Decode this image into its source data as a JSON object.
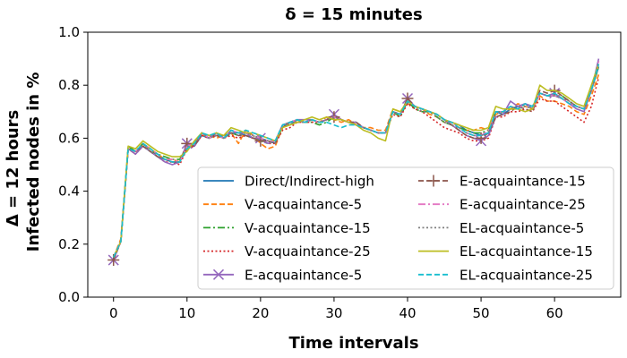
{
  "chart_data": {
    "type": "line",
    "title": "δ = 15 minutes",
    "xlabel": "Time intervals",
    "ylabel_lines": [
      "Δ = 12 hours",
      "Infected nodes in %"
    ],
    "xlim": [
      -3.5,
      69
    ],
    "ylim": [
      0.0,
      1.0
    ],
    "xticks": [
      0,
      10,
      20,
      30,
      40,
      50,
      60
    ],
    "yticks": [
      0.0,
      0.2,
      0.4,
      0.6,
      0.8,
      1.0
    ],
    "grid": false,
    "legend_position": "lower-right",
    "legend_columns": 2,
    "x": [
      0,
      1,
      2,
      3,
      4,
      5,
      6,
      7,
      8,
      9,
      10,
      11,
      12,
      13,
      14,
      15,
      16,
      17,
      18,
      19,
      20,
      21,
      22,
      23,
      24,
      25,
      26,
      27,
      28,
      29,
      30,
      31,
      32,
      33,
      34,
      35,
      36,
      37,
      38,
      39,
      40,
      41,
      42,
      43,
      44,
      45,
      46,
      47,
      48,
      49,
      50,
      51,
      52,
      53,
      54,
      55,
      56,
      57,
      58,
      59,
      60,
      61,
      62,
      63,
      64,
      65,
      66
    ],
    "series": [
      {
        "name": "Direct/Indirect-high",
        "color": "#1f77b4",
        "dash": "solid",
        "marker": "none",
        "values": [
          0.15,
          0.21,
          0.56,
          0.55,
          0.57,
          0.55,
          0.53,
          0.52,
          0.51,
          0.51,
          0.57,
          0.57,
          0.61,
          0.6,
          0.62,
          0.6,
          0.62,
          0.62,
          0.61,
          0.6,
          0.6,
          0.59,
          0.58,
          0.65,
          0.65,
          0.67,
          0.66,
          0.67,
          0.66,
          0.67,
          0.68,
          0.67,
          0.66,
          0.65,
          0.64,
          0.63,
          0.62,
          0.62,
          0.7,
          0.69,
          0.74,
          0.72,
          0.71,
          0.7,
          0.69,
          0.67,
          0.66,
          0.65,
          0.63,
          0.62,
          0.61,
          0.62,
          0.7,
          0.69,
          0.71,
          0.72,
          0.73,
          0.71,
          0.77,
          0.76,
          0.76,
          0.75,
          0.73,
          0.72,
          0.71,
          0.78,
          0.87
        ]
      },
      {
        "name": "V-acquaintance-5",
        "color": "#ff7f0e",
        "dash": "dashed",
        "marker": "none",
        "values": [
          0.15,
          0.22,
          0.56,
          0.54,
          0.58,
          0.56,
          0.54,
          0.52,
          0.52,
          0.51,
          0.56,
          0.58,
          0.61,
          0.61,
          0.6,
          0.61,
          0.62,
          0.58,
          0.63,
          0.61,
          0.58,
          0.56,
          0.57,
          0.64,
          0.66,
          0.66,
          0.66,
          0.67,
          0.66,
          0.68,
          0.67,
          0.66,
          0.67,
          0.65,
          0.64,
          0.64,
          0.63,
          0.63,
          0.71,
          0.7,
          0.73,
          0.72,
          0.71,
          0.69,
          0.68,
          0.66,
          0.65,
          0.64,
          0.63,
          0.63,
          0.64,
          0.63,
          0.69,
          0.7,
          0.71,
          0.73,
          0.72,
          0.71,
          0.76,
          0.74,
          0.74,
          0.73,
          0.72,
          0.7,
          0.69,
          0.76,
          0.84
        ]
      },
      {
        "name": "V-acquaintance-15",
        "color": "#2ca02c",
        "dash": "dashdot",
        "marker": "none",
        "values": [
          0.15,
          0.21,
          0.57,
          0.55,
          0.58,
          0.55,
          0.54,
          0.53,
          0.52,
          0.52,
          0.57,
          0.58,
          0.62,
          0.6,
          0.61,
          0.6,
          0.62,
          0.61,
          0.62,
          0.61,
          0.59,
          0.58,
          0.59,
          0.65,
          0.66,
          0.67,
          0.66,
          0.66,
          0.65,
          0.66,
          0.68,
          0.67,
          0.66,
          0.66,
          0.64,
          0.63,
          0.62,
          0.62,
          0.7,
          0.68,
          0.74,
          0.71,
          0.7,
          0.7,
          0.68,
          0.66,
          0.65,
          0.64,
          0.63,
          0.62,
          0.62,
          0.63,
          0.7,
          0.7,
          0.72,
          0.71,
          0.73,
          0.72,
          0.77,
          0.76,
          0.76,
          0.76,
          0.74,
          0.72,
          0.71,
          0.78,
          0.87
        ]
      },
      {
        "name": "V-acquaintance-25",
        "color": "#d62728",
        "dash": "dotted",
        "marker": "none",
        "values": [
          0.14,
          0.21,
          0.56,
          0.54,
          0.57,
          0.55,
          0.53,
          0.51,
          0.51,
          0.5,
          0.56,
          0.57,
          0.61,
          0.6,
          0.61,
          0.6,
          0.61,
          0.6,
          0.61,
          0.6,
          0.6,
          0.58,
          0.58,
          0.63,
          0.64,
          0.66,
          0.66,
          0.66,
          0.66,
          0.67,
          0.69,
          0.67,
          0.66,
          0.65,
          0.64,
          0.63,
          0.62,
          0.62,
          0.69,
          0.68,
          0.73,
          0.71,
          0.7,
          0.68,
          0.66,
          0.64,
          0.63,
          0.62,
          0.6,
          0.59,
          0.59,
          0.6,
          0.68,
          0.68,
          0.7,
          0.7,
          0.71,
          0.7,
          0.75,
          0.74,
          0.74,
          0.72,
          0.7,
          0.68,
          0.66,
          0.72,
          0.83
        ]
      },
      {
        "name": "E-acquaintance-5",
        "color": "#9467bd",
        "dash": "solid",
        "marker": "x",
        "values": [
          0.14,
          0.21,
          0.56,
          0.54,
          0.57,
          0.55,
          0.53,
          0.51,
          0.5,
          0.51,
          0.58,
          0.57,
          0.62,
          0.6,
          0.62,
          0.6,
          0.63,
          0.62,
          0.62,
          0.6,
          0.6,
          0.58,
          0.59,
          0.65,
          0.66,
          0.67,
          0.67,
          0.67,
          0.66,
          0.67,
          0.69,
          0.67,
          0.66,
          0.66,
          0.64,
          0.63,
          0.62,
          0.62,
          0.7,
          0.69,
          0.75,
          0.72,
          0.71,
          0.7,
          0.69,
          0.67,
          0.65,
          0.63,
          0.61,
          0.6,
          0.59,
          0.61,
          0.68,
          0.69,
          0.74,
          0.72,
          0.73,
          0.72,
          0.77,
          0.76,
          0.77,
          0.75,
          0.73,
          0.71,
          0.7,
          0.78,
          0.9
        ]
      },
      {
        "name": "E-acquaintance-15",
        "color": "#8c564b",
        "dash": "dashed",
        "marker": "plus",
        "values": [
          0.14,
          0.21,
          0.56,
          0.55,
          0.57,
          0.55,
          0.53,
          0.52,
          0.51,
          0.51,
          0.58,
          0.57,
          0.62,
          0.61,
          0.61,
          0.61,
          0.62,
          0.61,
          0.61,
          0.6,
          0.59,
          0.59,
          0.58,
          0.64,
          0.66,
          0.67,
          0.66,
          0.67,
          0.66,
          0.67,
          0.68,
          0.67,
          0.66,
          0.66,
          0.64,
          0.63,
          0.62,
          0.62,
          0.7,
          0.69,
          0.75,
          0.72,
          0.71,
          0.7,
          0.69,
          0.67,
          0.65,
          0.63,
          0.61,
          0.6,
          0.6,
          0.62,
          0.68,
          0.69,
          0.7,
          0.72,
          0.71,
          0.7,
          0.78,
          0.77,
          0.78,
          0.76,
          0.74,
          0.72,
          0.71,
          0.78,
          0.89
        ]
      },
      {
        "name": "E-acquaintance-25",
        "color": "#e377c2",
        "dash": "dashdot",
        "marker": "none",
        "values": [
          0.15,
          0.21,
          0.56,
          0.55,
          0.58,
          0.56,
          0.54,
          0.52,
          0.52,
          0.51,
          0.57,
          0.58,
          0.62,
          0.6,
          0.61,
          0.6,
          0.63,
          0.62,
          0.62,
          0.61,
          0.6,
          0.59,
          0.59,
          0.65,
          0.66,
          0.67,
          0.66,
          0.67,
          0.66,
          0.67,
          0.68,
          0.67,
          0.66,
          0.65,
          0.64,
          0.63,
          0.62,
          0.62,
          0.7,
          0.69,
          0.74,
          0.72,
          0.71,
          0.7,
          0.69,
          0.67,
          0.66,
          0.64,
          0.62,
          0.61,
          0.61,
          0.63,
          0.7,
          0.7,
          0.72,
          0.71,
          0.73,
          0.71,
          0.77,
          0.76,
          0.76,
          0.75,
          0.73,
          0.72,
          0.71,
          0.78,
          0.89
        ]
      },
      {
        "name": "EL-acquaintance-5",
        "color": "#7f7f7f",
        "dash": "dotted",
        "marker": "none",
        "values": [
          0.15,
          0.21,
          0.56,
          0.55,
          0.58,
          0.55,
          0.54,
          0.52,
          0.51,
          0.51,
          0.57,
          0.58,
          0.62,
          0.6,
          0.61,
          0.6,
          0.62,
          0.61,
          0.62,
          0.61,
          0.6,
          0.59,
          0.58,
          0.65,
          0.66,
          0.66,
          0.66,
          0.67,
          0.66,
          0.67,
          0.68,
          0.67,
          0.66,
          0.65,
          0.64,
          0.63,
          0.62,
          0.62,
          0.7,
          0.69,
          0.74,
          0.72,
          0.7,
          0.7,
          0.68,
          0.66,
          0.65,
          0.64,
          0.62,
          0.61,
          0.61,
          0.62,
          0.7,
          0.7,
          0.72,
          0.71,
          0.72,
          0.71,
          0.77,
          0.76,
          0.76,
          0.75,
          0.74,
          0.72,
          0.71,
          0.78,
          0.87
        ]
      },
      {
        "name": "EL-acquaintance-15",
        "color": "#bcbd22",
        "dash": "solid",
        "marker": "none",
        "values": [
          0.15,
          0.21,
          0.57,
          0.56,
          0.59,
          0.57,
          0.55,
          0.54,
          0.53,
          0.53,
          0.55,
          0.59,
          0.62,
          0.61,
          0.62,
          0.61,
          0.64,
          0.63,
          0.62,
          0.62,
          0.61,
          0.6,
          0.59,
          0.64,
          0.65,
          0.66,
          0.67,
          0.68,
          0.67,
          0.68,
          0.67,
          0.67,
          0.66,
          0.65,
          0.63,
          0.62,
          0.6,
          0.59,
          0.71,
          0.7,
          0.74,
          0.72,
          0.71,
          0.7,
          0.69,
          0.67,
          0.66,
          0.65,
          0.64,
          0.63,
          0.63,
          0.64,
          0.72,
          0.71,
          0.71,
          0.71,
          0.7,
          0.71,
          0.8,
          0.78,
          0.78,
          0.77,
          0.75,
          0.73,
          0.72,
          0.8,
          0.88
        ]
      },
      {
        "name": "EL-acquaintance-25",
        "color": "#17becf",
        "dash": "dashed",
        "marker": "none",
        "values": [
          0.15,
          0.21,
          0.56,
          0.55,
          0.58,
          0.56,
          0.54,
          0.52,
          0.51,
          0.51,
          0.56,
          0.58,
          0.62,
          0.61,
          0.62,
          0.6,
          0.63,
          0.62,
          0.63,
          0.62,
          0.61,
          0.6,
          0.59,
          0.65,
          0.66,
          0.67,
          0.66,
          0.67,
          0.66,
          0.66,
          0.65,
          0.64,
          0.65,
          0.65,
          0.64,
          0.63,
          0.62,
          0.62,
          0.7,
          0.69,
          0.74,
          0.72,
          0.71,
          0.7,
          0.69,
          0.67,
          0.66,
          0.64,
          0.62,
          0.61,
          0.61,
          0.62,
          0.7,
          0.7,
          0.72,
          0.71,
          0.73,
          0.72,
          0.77,
          0.76,
          0.77,
          0.75,
          0.73,
          0.72,
          0.71,
          0.78,
          0.88
        ]
      }
    ]
  }
}
